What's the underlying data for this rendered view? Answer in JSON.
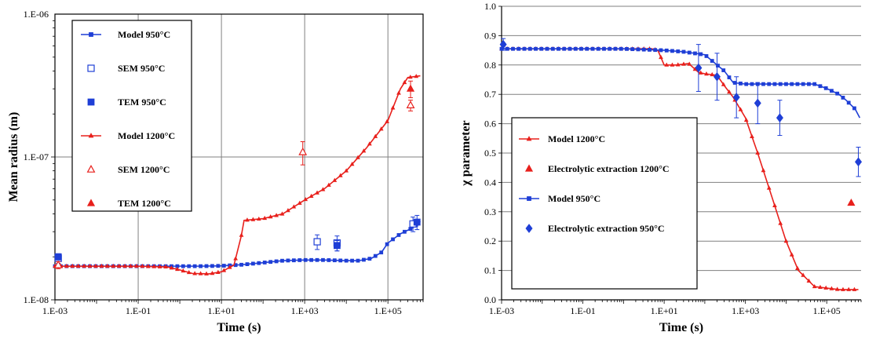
{
  "chart_data": [
    {
      "type": "scatter",
      "xscale": "log",
      "yscale": "log",
      "xlim": [
        0.001,
        700000
      ],
      "ylim": [
        1e-08,
        1e-06
      ],
      "xlabel": "Time (s)",
      "ylabel": "Mean radius (m)",
      "xticks": [
        "1.E-03",
        "1.E-01",
        "1.E+01",
        "1.E+03",
        "1.E+05"
      ],
      "yticks": [
        "1.E-08",
        "1.E-07",
        "1.E-06"
      ],
      "grid": true,
      "legend_position": "top-left",
      "series": [
        {
          "name": "Model 950°C",
          "kind": "line",
          "color": "#1f3fd6",
          "marker": "square",
          "x": [
            0.001,
            0.002,
            0.004,
            0.01,
            0.03,
            0.1,
            0.3,
            1,
            3,
            10,
            30,
            100,
            300,
            1000,
            3000,
            10000,
            20000,
            40000,
            70000,
            100000,
            200000,
            400000,
            600000
          ],
          "y": [
            1.72e-08,
            1.72e-08,
            1.72e-08,
            1.72e-08,
            1.72e-08,
            1.72e-08,
            1.72e-08,
            1.72e-08,
            1.72e-08,
            1.73e-08,
            1.76e-08,
            1.82e-08,
            1.88e-08,
            1.9e-08,
            1.9e-08,
            1.88e-08,
            1.88e-08,
            1.95e-08,
            2.15e-08,
            2.5e-08,
            2.9e-08,
            3.2e-08,
            3.55e-08
          ]
        },
        {
          "name": "SEM 950°C",
          "kind": "points",
          "color": "#1f3fd6",
          "marker": "square-open",
          "x": [
            0.0012,
            2000,
            6000,
            400000
          ],
          "y": [
            1.95e-08,
            2.55e-08,
            2.5e-08,
            3.4e-08
          ],
          "err": [
            1.5e-09,
            3e-09,
            3e-09,
            4e-09
          ]
        },
        {
          "name": "TEM 950°C",
          "kind": "points",
          "color": "#1f3fd6",
          "marker": "square",
          "x": [
            0.0012,
            6000,
            500000
          ],
          "y": [
            2e-08,
            2.4e-08,
            3.5e-08
          ],
          "err": [
            1e-09,
            2e-09,
            4e-09
          ]
        },
        {
          "name": "Model 1200°C",
          "kind": "line",
          "color": "#e8201c",
          "marker": "triangle",
          "x": [
            0.001,
            0.01,
            0.1,
            0.5,
            1,
            2,
            5,
            10,
            20,
            30,
            35,
            100,
            300,
            1000,
            3000,
            10000,
            30000,
            100000,
            200000,
            300000,
            600000
          ],
          "y": [
            1.72e-08,
            1.72e-08,
            1.72e-08,
            1.7e-08,
            1.62e-08,
            1.53e-08,
            1.52e-08,
            1.57e-08,
            1.75e-08,
            2.8e-08,
            3.6e-08,
            3.7e-08,
            4e-08,
            5e-08,
            6e-08,
            8e-08,
            1.15e-07,
            1.8e-07,
            3e-07,
            3.6e-07,
            3.7e-07
          ]
        },
        {
          "name": "SEM 1200°C",
          "kind": "points",
          "color": "#e8201c",
          "marker": "triangle-open",
          "x": [
            0.0012,
            900,
            350000
          ],
          "y": [
            1.75e-08,
            1.08e-07,
            2.3e-07
          ],
          "err": [
            1e-09,
            2e-08,
            2e-08
          ]
        },
        {
          "name": "TEM 1200°C",
          "kind": "points",
          "color": "#e8201c",
          "marker": "triangle",
          "x": [
            350000
          ],
          "y": [
            3e-07
          ],
          "err": [
            4e-08
          ]
        }
      ]
    },
    {
      "type": "scatter",
      "xscale": "log",
      "yscale": "linear",
      "xlim": [
        0.001,
        700000
      ],
      "ylim": [
        0,
        1
      ],
      "xlabel": "Time (s)",
      "ylabel": "χ parameter",
      "xticks": [
        "1.E-03",
        "1.E-01",
        "1.E+01",
        "1.E+03",
        "1.E+05"
      ],
      "yticks": [
        "0.0",
        "0.1",
        "0.2",
        "0.3",
        "0.4",
        "0.5",
        "0.6",
        "0.7",
        "0.8",
        "0.9",
        "1.0"
      ],
      "grid": "horizontal",
      "legend_position": "bottom-left",
      "series": [
        {
          "name": "Model 1200°C",
          "kind": "line",
          "color": "#e8201c",
          "marker": "triangle",
          "x": [
            0.001,
            0.01,
            0.1,
            1,
            3,
            5,
            7,
            10,
            20,
            40,
            70,
            100,
            200,
            300,
            500,
            1000,
            2000,
            5000,
            10000,
            20000,
            50000,
            100000,
            200000,
            400000,
            600000
          ],
          "y": [
            0.855,
            0.855,
            0.855,
            0.855,
            0.855,
            0.855,
            0.85,
            0.8,
            0.8,
            0.805,
            0.775,
            0.77,
            0.765,
            0.73,
            0.69,
            0.62,
            0.5,
            0.33,
            0.2,
            0.1,
            0.045,
            0.04,
            0.035,
            0.035,
            0.035
          ]
        },
        {
          "name": "Electrolytic extraction 1200°C",
          "kind": "points",
          "color": "#e8201c",
          "marker": "triangle",
          "x": [
            400000
          ],
          "y": [
            0.33
          ],
          "err": [
            0
          ]
        },
        {
          "name": "Model 950°C",
          "kind": "line",
          "color": "#1f3fd6",
          "marker": "square",
          "x": [
            0.001,
            0.01,
            0.1,
            1,
            10,
            30,
            100,
            200,
            300,
            500,
            1000,
            3000,
            10000,
            30000,
            50000,
            100000,
            200000,
            300000,
            500000,
            650000
          ],
          "y": [
            0.855,
            0.855,
            0.855,
            0.855,
            0.85,
            0.845,
            0.835,
            0.8,
            0.78,
            0.74,
            0.735,
            0.735,
            0.735,
            0.735,
            0.735,
            0.72,
            0.7,
            0.68,
            0.65,
            0.62
          ]
        },
        {
          "name": "Electrolytic extraction 950°C",
          "kind": "points",
          "color": "#1f3fd6",
          "marker": "diamond",
          "x": [
            0.0011,
            70,
            200,
            600,
            2000,
            7000,
            600000
          ],
          "y": [
            0.87,
            0.79,
            0.76,
            0.69,
            0.67,
            0.62,
            0.47
          ],
          "err": [
            0.02,
            0.08,
            0.08,
            0.07,
            0.07,
            0.06,
            0.05
          ]
        }
      ]
    }
  ]
}
